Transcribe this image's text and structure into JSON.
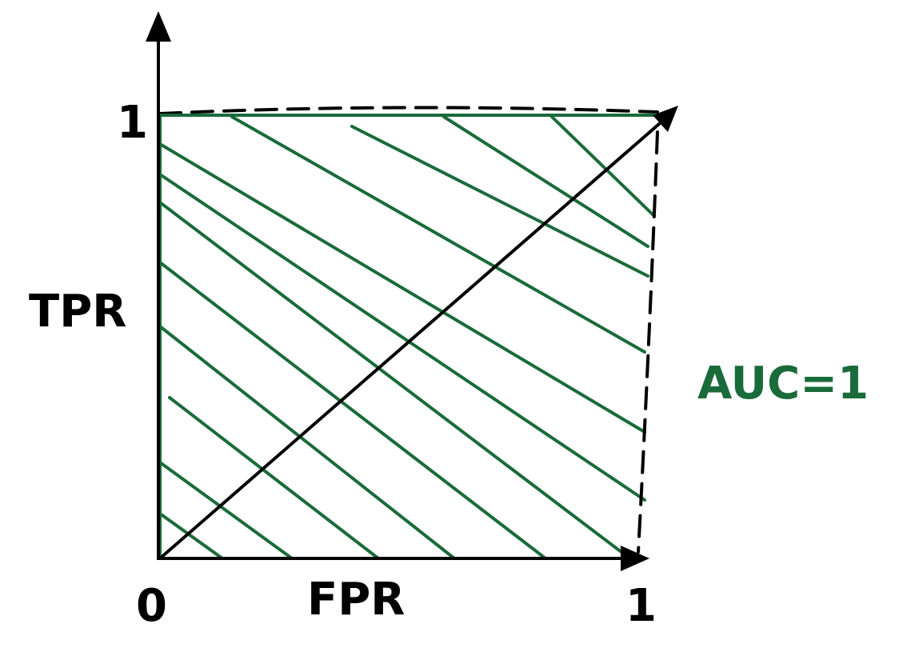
{
  "labels": {
    "y_axis": "TPR",
    "x_axis": "FPR",
    "y_tick_top": "1",
    "origin": "0",
    "x_tick_right": "1",
    "auc": "AUC=1"
  },
  "chart_data": {
    "type": "area",
    "xlabel": "FPR",
    "ylabel": "TPR",
    "xlim": [
      0,
      1
    ],
    "ylim": [
      0,
      1
    ],
    "series": [
      {
        "x": [
          0,
          0,
          1
        ],
        "y": [
          0,
          1,
          1
        ]
      }
    ],
    "reference_line": {
      "x": [
        0,
        1
      ],
      "y": [
        0,
        1
      ]
    },
    "annotations": [
      "AUC=1"
    ]
  },
  "colors": {
    "ink": "#000000",
    "curve": "#1a6b3a",
    "auc_text": "#1a6b3a"
  }
}
